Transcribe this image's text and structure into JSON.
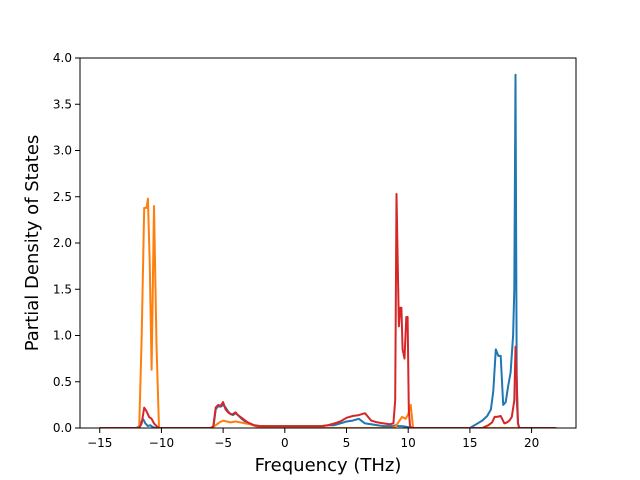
{
  "chart_data": {
    "type": "line",
    "title": "",
    "xlabel": "Frequency (THz)",
    "ylabel": "Partial Density of States",
    "xlim": [
      -16.6,
      23.6
    ],
    "ylim": [
      0.0,
      4.0
    ],
    "xticks": [
      -15,
      -10,
      -5,
      0,
      5,
      10,
      15,
      20
    ],
    "yticks": [
      0.0,
      0.5,
      1.0,
      1.5,
      2.0,
      2.5,
      3.0,
      3.5,
      4.0
    ],
    "xtick_labels": [
      "−15",
      "−10",
      "−5",
      "0",
      "5",
      "10",
      "15",
      "20"
    ],
    "ytick_labels": [
      "0.0",
      "0.5",
      "1.0",
      "1.5",
      "2.0",
      "2.5",
      "3.0",
      "3.5",
      "4.0"
    ],
    "grid": false,
    "legend": "none",
    "series": [
      {
        "color": "#1f77b4",
        "x": [
          -15,
          -12,
          -11.8,
          -11.5,
          -11.3,
          -11.1,
          -10.9,
          -10.7,
          -10.5,
          -10.3,
          -10.0,
          -7,
          -6,
          -5.8,
          -5.6,
          -5.4,
          -5.2,
          -5.0,
          -4.8,
          -4.6,
          -4.4,
          -4.2,
          -4.0,
          -3.8,
          -3.5,
          -3.0,
          -2.5,
          -2.0,
          -1.5,
          -1.0,
          0,
          1,
          2,
          3,
          3.5,
          4.0,
          4.5,
          5.0,
          5.5,
          6.0,
          6.5,
          7.0,
          7.5,
          8.0,
          8.5,
          8.8,
          9.0,
          9.2,
          9.5,
          10.0,
          10.5,
          12,
          14,
          15.0,
          15.5,
          16.0,
          16.4,
          16.7,
          16.9,
          17.1,
          17.3,
          17.5,
          17.7,
          17.9,
          18.1,
          18.3,
          18.5,
          18.6,
          18.7,
          18.8,
          18.9,
          19.0,
          19.2,
          20,
          22
        ],
        "y": [
          0.0,
          0.0,
          0.02,
          0.1,
          0.05,
          0.02,
          0.03,
          0.01,
          0.0,
          0.0,
          0.0,
          0.0,
          0.0,
          0.0,
          0.2,
          0.24,
          0.23,
          0.25,
          0.22,
          0.18,
          0.15,
          0.14,
          0.16,
          0.14,
          0.1,
          0.05,
          0.03,
          0.02,
          0.02,
          0.02,
          0.02,
          0.02,
          0.02,
          0.02,
          0.03,
          0.03,
          0.05,
          0.07,
          0.08,
          0.1,
          0.05,
          0.04,
          0.03,
          0.02,
          0.02,
          0.02,
          0.03,
          0.02,
          0.02,
          0.01,
          0.0,
          0.0,
          0.0,
          0.0,
          0.04,
          0.08,
          0.13,
          0.2,
          0.4,
          0.85,
          0.78,
          0.78,
          0.25,
          0.28,
          0.45,
          0.6,
          1.0,
          1.5,
          3.82,
          0.3,
          0.05,
          0.0,
          0.0,
          0.0,
          0.0
        ]
      },
      {
        "color": "#ff7f0e",
        "x": [
          -15,
          -12,
          -11.8,
          -11.6,
          -11.4,
          -11.2,
          -11.1,
          -10.95,
          -10.8,
          -10.6,
          -10.4,
          -10.2,
          -10.0,
          -7,
          -6,
          -5.6,
          -5.3,
          -5.0,
          -4.7,
          -4.4,
          -4.0,
          -3.6,
          -3.2,
          -2.8,
          -2.4,
          -2.0,
          0,
          2,
          4,
          5,
          6,
          7,
          8,
          8.7,
          9.0,
          9.2,
          9.5,
          9.8,
          10.0,
          10.2,
          10.4,
          10.6,
          12,
          16,
          16.8,
          17.2,
          17.6,
          18.0,
          18.5,
          19.0,
          20,
          22
        ],
        "y": [
          0.0,
          0.0,
          0.0,
          1.0,
          2.38,
          2.38,
          2.48,
          1.8,
          0.63,
          2.4,
          0.9,
          0.0,
          0.0,
          0.0,
          0.0,
          0.03,
          0.06,
          0.08,
          0.07,
          0.06,
          0.07,
          0.06,
          0.05,
          0.04,
          0.02,
          0.01,
          0.0,
          0.0,
          0.0,
          0.0,
          0.0,
          0.0,
          0.0,
          0.0,
          0.02,
          0.06,
          0.12,
          0.1,
          0.15,
          0.25,
          0.0,
          0.0,
          0.0,
          0.0,
          0.0,
          0.0,
          0.0,
          0.0,
          0.0,
          0.0,
          0.0,
          0.0
        ]
      },
      {
        "color": "#d62728",
        "x": [
          -15,
          -12,
          -11.8,
          -11.6,
          -11.4,
          -11.2,
          -11.0,
          -10.8,
          -10.6,
          -10.4,
          -10.2,
          -10.0,
          -7,
          -6,
          -5.8,
          -5.6,
          -5.4,
          -5.2,
          -5.0,
          -4.8,
          -4.6,
          -4.4,
          -4.2,
          -4.0,
          -3.8,
          -3.5,
          -3.0,
          -2.5,
          -2.0,
          -1.5,
          -1.0,
          0,
          1,
          2,
          3,
          3.5,
          4.0,
          4.5,
          5.0,
          5.5,
          6.0,
          6.5,
          7.0,
          7.5,
          8.0,
          8.5,
          8.8,
          8.95,
          9.05,
          9.15,
          9.25,
          9.35,
          9.45,
          9.55,
          9.7,
          9.85,
          9.95,
          10.05,
          10.15,
          10.3,
          10.5,
          12,
          14,
          16,
          16.5,
          16.8,
          17.0,
          17.2,
          17.5,
          17.8,
          18.0,
          18.2,
          18.4,
          18.6,
          18.7,
          18.8,
          18.9,
          19.0,
          19.3,
          20,
          22
        ],
        "y": [
          0.0,
          0.0,
          0.0,
          0.05,
          0.22,
          0.18,
          0.12,
          0.1,
          0.05,
          0.02,
          0.0,
          0.0,
          0.0,
          0.0,
          0.02,
          0.22,
          0.25,
          0.24,
          0.28,
          0.2,
          0.17,
          0.15,
          0.15,
          0.17,
          0.14,
          0.11,
          0.06,
          0.03,
          0.02,
          0.02,
          0.02,
          0.02,
          0.02,
          0.02,
          0.02,
          0.03,
          0.05,
          0.07,
          0.11,
          0.13,
          0.14,
          0.16,
          0.08,
          0.06,
          0.05,
          0.04,
          0.05,
          0.3,
          2.53,
          1.8,
          1.1,
          1.3,
          1.3,
          0.85,
          0.75,
          1.2,
          1.2,
          0.2,
          0.02,
          0.0,
          0.0,
          0.0,
          0.0,
          0.0,
          0.03,
          0.06,
          0.12,
          0.12,
          0.13,
          0.05,
          0.06,
          0.08,
          0.12,
          0.3,
          0.88,
          0.5,
          0.05,
          0.0,
          0.0,
          0.0,
          0.0
        ]
      }
    ]
  }
}
